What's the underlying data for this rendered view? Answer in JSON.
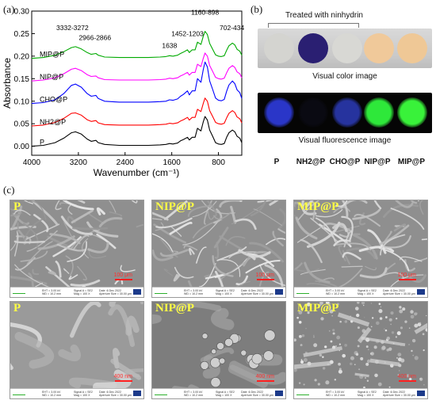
{
  "panels": {
    "a": "(a)",
    "b": "(b)",
    "c": "(c)"
  },
  "chart_data": {
    "type": "line",
    "xlabel": "Wavenumber (cm⁻¹)",
    "ylabel": "Absorbance",
    "xlim": [
      4000,
      400
    ],
    "ylim": [
      -0.02,
      0.3
    ],
    "xticks": [
      4000,
      3200,
      2400,
      1600,
      800
    ],
    "yticks": [
      0.0,
      0.05,
      0.1,
      0.15,
      0.2,
      0.25,
      0.3
    ],
    "ytick_labels": [
      "0.00",
      "0.05",
      "0.10",
      "0.15",
      "0.20",
      "0.25",
      "0.30"
    ],
    "grid": false,
    "annotations": [
      {
        "text": "3332-3272",
        "x": 3302,
        "y": 0.258
      },
      {
        "text": "2966-2866",
        "x": 2916,
        "y": 0.236
      },
      {
        "text": "1452-1203",
        "x": 1330,
        "y": 0.245
      },
      {
        "text": "1638",
        "x": 1638,
        "y": 0.218
      },
      {
        "text": "1160-898",
        "x": 1030,
        "y": 0.292
      },
      {
        "text": "702-434",
        "x": 568,
        "y": 0.258
      }
    ],
    "series": [
      {
        "name": "P",
        "color": "#000000",
        "offset": 0.0,
        "x": [
          4000,
          3800,
          3600,
          3450,
          3320,
          3250,
          3150,
          3050,
          2980,
          2900,
          2860,
          2750,
          2500,
          2200,
          2000,
          1800,
          1700,
          1638,
          1580,
          1500,
          1450,
          1400,
          1330,
          1300,
          1250,
          1200,
          1160,
          1100,
          1060,
          1030,
          990,
          950,
          898,
          850,
          800,
          750,
          700,
          660,
          620,
          560,
          520,
          480,
          434,
          400
        ],
        "y": [
          0.0,
          0.002,
          0.008,
          0.018,
          0.03,
          0.032,
          0.027,
          0.016,
          0.011,
          0.013,
          0.008,
          0.004,
          0.002,
          0.002,
          0.002,
          0.003,
          0.004,
          0.006,
          0.005,
          0.007,
          0.012,
          0.015,
          0.02,
          0.014,
          0.02,
          0.02,
          0.04,
          0.034,
          0.054,
          0.066,
          0.058,
          0.036,
          0.022,
          0.008,
          0.005,
          0.004,
          0.006,
          0.02,
          0.03,
          0.036,
          0.032,
          0.022,
          0.018,
          0.008
        ]
      },
      {
        "name": "NH2@P",
        "color": "#ff0000",
        "offset": 0.045,
        "x": [
          4000,
          3800,
          3600,
          3450,
          3320,
          3250,
          3150,
          3050,
          2980,
          2900,
          2860,
          2750,
          2500,
          2200,
          2000,
          1800,
          1700,
          1638,
          1580,
          1500,
          1450,
          1400,
          1330,
          1300,
          1250,
          1200,
          1160,
          1100,
          1060,
          1030,
          990,
          950,
          898,
          850,
          800,
          750,
          700,
          660,
          620,
          560,
          520,
          480,
          434,
          400
        ],
        "y": [
          0.0,
          0.002,
          0.008,
          0.017,
          0.028,
          0.029,
          0.024,
          0.014,
          0.01,
          0.012,
          0.007,
          0.003,
          0.002,
          0.002,
          0.002,
          0.003,
          0.004,
          0.006,
          0.005,
          0.007,
          0.011,
          0.014,
          0.019,
          0.013,
          0.019,
          0.019,
          0.037,
          0.032,
          0.05,
          0.062,
          0.055,
          0.034,
          0.021,
          0.008,
          0.005,
          0.004,
          0.006,
          0.018,
          0.028,
          0.034,
          0.03,
          0.02,
          0.016,
          0.007
        ]
      },
      {
        "name": "CHO@P",
        "color": "#0000ff",
        "offset": 0.095,
        "x": [
          4000,
          3800,
          3600,
          3450,
          3320,
          3250,
          3150,
          3050,
          2980,
          2900,
          2860,
          2750,
          2500,
          2200,
          2000,
          1800,
          1700,
          1638,
          1580,
          1500,
          1450,
          1400,
          1330,
          1300,
          1250,
          1200,
          1160,
          1100,
          1060,
          1030,
          990,
          950,
          898,
          850,
          800,
          750,
          700,
          660,
          620,
          560,
          520,
          480,
          434,
          400
        ],
        "y": [
          0.0,
          0.002,
          0.008,
          0.022,
          0.04,
          0.043,
          0.036,
          0.022,
          0.016,
          0.018,
          0.011,
          0.005,
          0.003,
          0.003,
          0.003,
          0.004,
          0.005,
          0.008,
          0.007,
          0.01,
          0.016,
          0.02,
          0.028,
          0.019,
          0.028,
          0.028,
          0.055,
          0.047,
          0.075,
          0.092,
          0.081,
          0.05,
          0.031,
          0.012,
          0.007,
          0.006,
          0.009,
          0.027,
          0.041,
          0.05,
          0.044,
          0.03,
          0.024,
          0.011
        ]
      },
      {
        "name": "NIP@P",
        "color": "#ff00ff",
        "offset": 0.145,
        "x": [
          4000,
          3800,
          3600,
          3450,
          3320,
          3250,
          3150,
          3050,
          2980,
          2900,
          2860,
          2750,
          2500,
          2200,
          2000,
          1800,
          1700,
          1638,
          1580,
          1500,
          1450,
          1400,
          1330,
          1300,
          1250,
          1200,
          1160,
          1100,
          1060,
          1030,
          990,
          950,
          898,
          850,
          800,
          750,
          700,
          660,
          620,
          560,
          520,
          480,
          434,
          400
        ],
        "y": [
          0.0,
          0.002,
          0.007,
          0.016,
          0.026,
          0.028,
          0.023,
          0.014,
          0.01,
          0.011,
          0.007,
          0.003,
          0.002,
          0.002,
          0.002,
          0.003,
          0.004,
          0.006,
          0.005,
          0.007,
          0.011,
          0.014,
          0.019,
          0.013,
          0.019,
          0.019,
          0.037,
          0.032,
          0.05,
          0.062,
          0.055,
          0.034,
          0.021,
          0.008,
          0.005,
          0.004,
          0.006,
          0.018,
          0.028,
          0.034,
          0.03,
          0.02,
          0.016,
          0.007
        ]
      },
      {
        "name": "MIP@P",
        "color": "#00aa00",
        "offset": 0.195,
        "x": [
          4000,
          3800,
          3600,
          3450,
          3320,
          3250,
          3150,
          3050,
          2980,
          2900,
          2860,
          2750,
          2500,
          2200,
          2000,
          1800,
          1700,
          1638,
          1580,
          1500,
          1450,
          1400,
          1330,
          1300,
          1250,
          1200,
          1160,
          1100,
          1060,
          1030,
          990,
          950,
          898,
          850,
          800,
          750,
          700,
          660,
          620,
          560,
          520,
          480,
          434,
          400
        ],
        "y": [
          0.0,
          0.002,
          0.007,
          0.015,
          0.024,
          0.026,
          0.021,
          0.013,
          0.009,
          0.011,
          0.007,
          0.003,
          0.002,
          0.002,
          0.002,
          0.003,
          0.004,
          0.006,
          0.005,
          0.007,
          0.011,
          0.014,
          0.019,
          0.013,
          0.019,
          0.019,
          0.036,
          0.031,
          0.049,
          0.06,
          0.053,
          0.033,
          0.02,
          0.008,
          0.005,
          0.004,
          0.006,
          0.018,
          0.028,
          0.034,
          0.03,
          0.02,
          0.016,
          0.007
        ]
      }
    ]
  },
  "visual": {
    "title": "Treated with ninhydrin",
    "color_caption": "Visual color image",
    "fluorescence_caption": "Visual fluorescence image",
    "samples": [
      "P",
      "NH2@P",
      "CHO@P",
      "NIP@P",
      "MIP@P"
    ],
    "disc_colors": [
      "#d4d4d0",
      "#2a1f72",
      "#d8d8d4",
      "#f0c99a",
      "#efc896"
    ],
    "fluorescence_colors": [
      "#2a36c8",
      "#0a0a12",
      "#26339e",
      "#2ee83a",
      "#39f23a"
    ]
  },
  "sem": {
    "tiles": [
      {
        "label": "P",
        "scale": "100 μm"
      },
      {
        "label": "NIP@P",
        "scale": "100 μm"
      },
      {
        "label": "MIP@P",
        "scale": "100 μm"
      },
      {
        "label": "P",
        "scale": "400 nm"
      },
      {
        "label": "NIP@P",
        "scale": "400 nm"
      },
      {
        "label": "MIP@P",
        "scale": "400 nm"
      }
    ],
    "infobar": {
      "line1": [
        "EHT = 3.00 kV",
        "Signal A = SE2",
        "Date :6 Dec 2022"
      ],
      "line2": [
        "WD = 10.2 mm",
        "Mag = 100 X",
        "Aperture Size = 30.00 μm"
      ]
    }
  }
}
